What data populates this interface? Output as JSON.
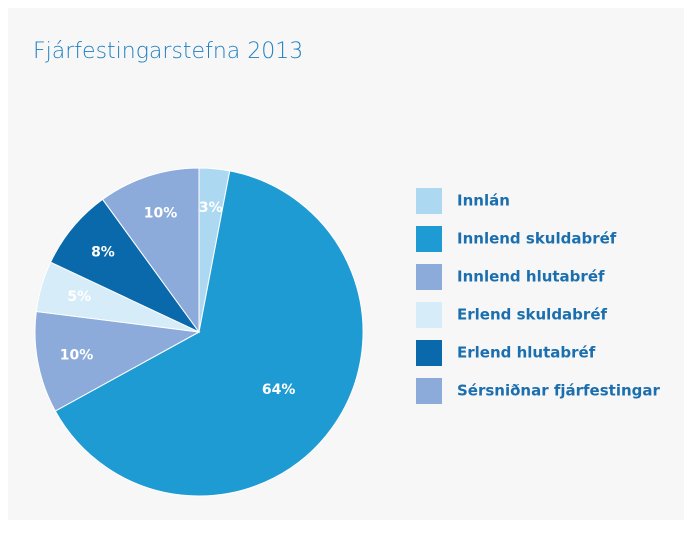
{
  "chart_data": {
    "type": "pie",
    "title": "Fjárfestingarstefna 2013",
    "categories": [
      "Innlán",
      "Innlend skuldabréf",
      "Innlend hlutabréf",
      "Erlend skuldabréf",
      "Erlend hlutabréf",
      "Sérsniðnar fjárfestingar"
    ],
    "values": [
      3,
      64,
      10,
      5,
      8,
      10
    ],
    "value_labels": [
      "3%",
      "64%",
      "10%",
      "5%",
      "8%",
      "10%"
    ],
    "colors": [
      "#acd9f1",
      "#1e9bd3",
      "#8cabda",
      "#d6ecf8",
      "#0a69ab",
      "#8cabda"
    ],
    "legend": "right"
  }
}
